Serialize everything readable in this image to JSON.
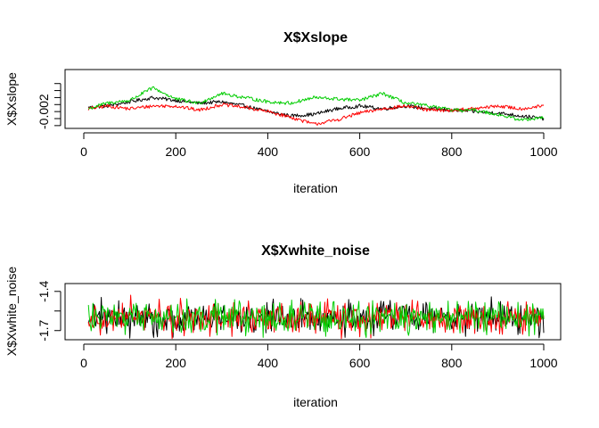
{
  "chart_data": [
    {
      "type": "line",
      "title": "X$Xslope",
      "xlabel": "iteration",
      "ylabel": "X$Xslope",
      "xlim": [
        0,
        1000
      ],
      "ylim": [
        -0.0032,
        0.001
      ],
      "xticks": [
        0,
        200,
        400,
        600,
        800,
        1000
      ],
      "yticks": [
        -0.003,
        -0.0025,
        -0.002,
        -0.0015,
        -0.001,
        -0.0005,
        0.0
      ],
      "ytick_labels": [
        "",
        "",
        "-0.002",
        "",
        "",
        "",
        ""
      ],
      "grid": false,
      "series": [
        {
          "color": "#000000",
          "x": [
            10,
            50,
            100,
            150,
            200,
            250,
            300,
            350,
            400,
            450,
            500,
            550,
            600,
            650,
            700,
            750,
            800,
            850,
            900,
            950,
            1000
          ],
          "values": [
            -0.0017,
            -0.0016,
            -0.0013,
            -0.001,
            -0.0012,
            -0.0014,
            -0.0013,
            -0.0016,
            -0.002,
            -0.0023,
            -0.0022,
            -0.0018,
            -0.0016,
            -0.0018,
            -0.0016,
            -0.0018,
            -0.0019,
            -0.002,
            -0.0021,
            -0.0023,
            -0.0025
          ]
        },
        {
          "color": "#ff0000",
          "x": [
            10,
            50,
            100,
            150,
            200,
            250,
            300,
            350,
            400,
            450,
            500,
            550,
            600,
            650,
            700,
            750,
            800,
            850,
            900,
            950,
            1000
          ],
          "values": [
            -0.0018,
            -0.0016,
            -0.0018,
            -0.0016,
            -0.0016,
            -0.0019,
            -0.0015,
            -0.0017,
            -0.002,
            -0.0024,
            -0.0029,
            -0.0026,
            -0.0021,
            -0.0018,
            -0.0016,
            -0.0019,
            -0.0019,
            -0.0018,
            -0.0016,
            -0.0018,
            -0.0016
          ]
        },
        {
          "color": "#00cd00",
          "x": [
            10,
            50,
            100,
            150,
            200,
            250,
            300,
            350,
            400,
            450,
            500,
            550,
            600,
            650,
            700,
            750,
            800,
            850,
            900,
            950,
            1000
          ],
          "values": [
            -0.0018,
            -0.0014,
            -0.0012,
            -0.0003,
            -0.0011,
            -0.0014,
            -0.0007,
            -0.001,
            -0.0013,
            -0.0014,
            -0.001,
            -0.0011,
            -0.0012,
            -0.0007,
            -0.0014,
            -0.0016,
            -0.0019,
            -0.0019,
            -0.0022,
            -0.0026,
            -0.0024
          ]
        }
      ]
    },
    {
      "type": "line",
      "title": "X$Xwhite_noise",
      "xlabel": "iteration",
      "ylabel": "X$Xwhite_noise",
      "xlim": [
        0,
        1000
      ],
      "ylim": [
        -1.77,
        -1.34
      ],
      "xticks": [
        0,
        200,
        400,
        600,
        800,
        1000
      ],
      "yticks": [
        -1.7,
        -1.55,
        -1.4
      ],
      "ytick_labels": [
        "-1.7",
        "",
        "-1.4"
      ],
      "grid": false,
      "noise_center": -1.6,
      "series": [
        {
          "color": "#000000"
        },
        {
          "color": "#ff0000"
        },
        {
          "color": "#00cd00"
        }
      ]
    }
  ]
}
